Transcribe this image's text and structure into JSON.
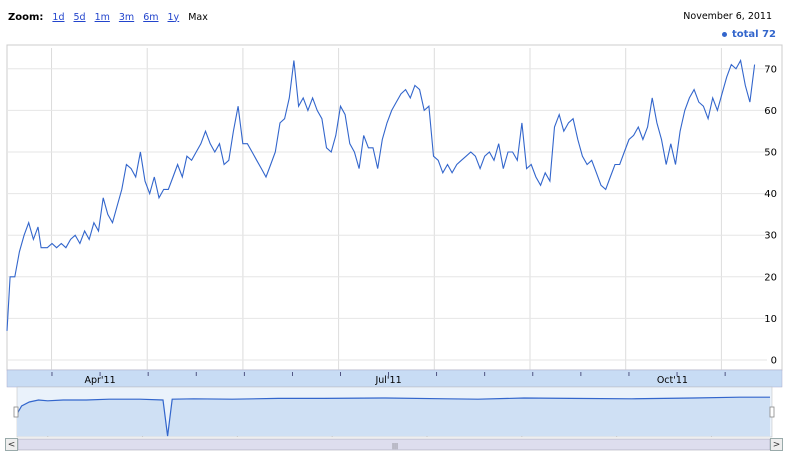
{
  "zoom": {
    "label": "Zoom:",
    "options": [
      "1d",
      "5d",
      "1m",
      "3m",
      "6m",
      "1y"
    ],
    "max": "Max"
  },
  "date": "November 6, 2011",
  "legend": {
    "label": "total 72",
    "color": "#3366cc"
  },
  "navigator": {
    "months": [
      "Apr'11",
      "Jul'11",
      "Oct'11"
    ]
  },
  "scrollbar": {
    "left_label": "<",
    "right_label": ">",
    "thumb_label": "|||"
  },
  "chart_data": {
    "type": "line",
    "series": [
      {
        "name": "total",
        "color": "#3366cc",
        "points": [
          [
            0,
            7
          ],
          [
            2,
            20
          ],
          [
            5,
            20
          ],
          [
            8,
            26
          ],
          [
            11,
            30
          ],
          [
            14,
            33
          ],
          [
            17,
            29
          ],
          [
            20,
            32
          ],
          [
            22,
            27
          ],
          [
            26,
            27
          ],
          [
            29,
            28
          ],
          [
            32,
            27
          ],
          [
            35,
            28
          ],
          [
            38,
            27
          ],
          [
            41,
            29
          ],
          [
            44,
            30
          ],
          [
            47,
            28
          ],
          [
            50,
            31
          ],
          [
            53,
            29
          ],
          [
            56,
            33
          ],
          [
            59,
            31
          ],
          [
            62,
            39
          ],
          [
            65,
            35
          ],
          [
            68,
            33
          ],
          [
            71,
            37
          ],
          [
            74,
            41
          ],
          [
            77,
            47
          ],
          [
            80,
            46
          ],
          [
            83,
            44
          ],
          [
            86,
            50
          ],
          [
            89,
            43
          ],
          [
            92,
            40
          ],
          [
            95,
            44
          ],
          [
            98,
            39
          ],
          [
            101,
            41
          ],
          [
            104,
            41
          ],
          [
            107,
            44
          ],
          [
            110,
            47
          ],
          [
            113,
            44
          ],
          [
            116,
            49
          ],
          [
            119,
            48
          ],
          [
            122,
            50
          ],
          [
            125,
            52
          ],
          [
            128,
            55
          ],
          [
            131,
            52
          ],
          [
            134,
            50
          ],
          [
            137,
            52
          ],
          [
            140,
            47
          ],
          [
            143,
            48
          ],
          [
            146,
            55
          ],
          [
            149,
            61
          ],
          [
            152,
            52
          ],
          [
            155,
            52
          ],
          [
            158,
            50
          ],
          [
            161,
            48
          ],
          [
            164,
            46
          ],
          [
            167,
            44
          ],
          [
            170,
            47
          ],
          [
            173,
            50
          ],
          [
            176,
            57
          ],
          [
            179,
            58
          ],
          [
            182,
            63
          ],
          [
            185,
            72
          ],
          [
            188,
            61
          ],
          [
            191,
            63
          ],
          [
            194,
            60
          ],
          [
            197,
            63
          ],
          [
            200,
            60
          ],
          [
            203,
            58
          ],
          [
            206,
            51
          ],
          [
            209,
            50
          ],
          [
            212,
            54
          ],
          [
            215,
            61
          ],
          [
            218,
            59
          ],
          [
            221,
            52
          ],
          [
            224,
            50
          ],
          [
            227,
            46
          ],
          [
            230,
            54
          ],
          [
            233,
            51
          ],
          [
            236,
            51
          ],
          [
            239,
            46
          ],
          [
            242,
            53
          ],
          [
            245,
            57
          ],
          [
            248,
            60
          ],
          [
            251,
            62
          ],
          [
            254,
            64
          ],
          [
            257,
            65
          ],
          [
            260,
            63
          ],
          [
            263,
            66
          ],
          [
            266,
            65
          ],
          [
            269,
            60
          ],
          [
            272,
            61
          ],
          [
            275,
            49
          ],
          [
            278,
            48
          ],
          [
            281,
            45
          ],
          [
            284,
            47
          ],
          [
            287,
            45
          ],
          [
            290,
            47
          ],
          [
            293,
            48
          ],
          [
            296,
            49
          ],
          [
            299,
            50
          ],
          [
            302,
            49
          ],
          [
            305,
            46
          ],
          [
            308,
            49
          ],
          [
            311,
            50
          ],
          [
            314,
            48
          ],
          [
            317,
            52
          ],
          [
            320,
            46
          ],
          [
            323,
            50
          ],
          [
            326,
            50
          ],
          [
            329,
            48
          ],
          [
            332,
            57
          ],
          [
            335,
            46
          ],
          [
            338,
            47
          ],
          [
            341,
            44
          ],
          [
            344,
            42
          ],
          [
            347,
            45
          ],
          [
            350,
            43
          ],
          [
            353,
            56
          ],
          [
            356,
            59
          ],
          [
            359,
            55
          ],
          [
            362,
            57
          ],
          [
            365,
            58
          ],
          [
            368,
            53
          ],
          [
            371,
            49
          ],
          [
            374,
            47
          ],
          [
            377,
            48
          ],
          [
            380,
            45
          ],
          [
            383,
            42
          ],
          [
            386,
            41
          ],
          [
            389,
            44
          ],
          [
            392,
            47
          ],
          [
            395,
            47
          ],
          [
            398,
            50
          ],
          [
            401,
            53
          ],
          [
            404,
            54
          ],
          [
            407,
            56
          ],
          [
            410,
            53
          ],
          [
            413,
            56
          ],
          [
            416,
            63
          ],
          [
            419,
            57
          ],
          [
            422,
            53
          ],
          [
            425,
            47
          ],
          [
            428,
            52
          ],
          [
            431,
            47
          ],
          [
            434,
            55
          ],
          [
            437,
            60
          ],
          [
            440,
            63
          ],
          [
            443,
            65
          ],
          [
            446,
            62
          ],
          [
            449,
            61
          ],
          [
            452,
            58
          ],
          [
            455,
            63
          ],
          [
            458,
            60
          ],
          [
            461,
            64
          ],
          [
            464,
            68
          ],
          [
            467,
            71
          ],
          [
            470,
            70
          ],
          [
            473,
            72
          ],
          [
            476,
            66
          ],
          [
            479,
            62
          ],
          [
            482,
            71
          ]
        ]
      }
    ],
    "xlim": [
      0,
      490
    ],
    "ylim": [
      0,
      75
    ],
    "yticks": [
      0,
      10,
      20,
      30,
      40,
      50,
      60,
      70
    ],
    "xticks": [
      {
        "x": 60,
        "label": "Apr'11"
      },
      {
        "x": 246,
        "label": "Jul'11"
      },
      {
        "x": 429,
        "label": "Oct'11"
      }
    ],
    "grid": true,
    "navigator_profile": [
      [
        0,
        0.55
      ],
      [
        3,
        0.75
      ],
      [
        8,
        0.85
      ],
      [
        14,
        0.9
      ],
      [
        20,
        0.88
      ],
      [
        30,
        0.9
      ],
      [
        45,
        0.9
      ],
      [
        60,
        0.92
      ],
      [
        80,
        0.92
      ],
      [
        95,
        0.9
      ],
      [
        98,
        0.0
      ],
      [
        101,
        0.92
      ],
      [
        115,
        0.93
      ],
      [
        140,
        0.92
      ],
      [
        170,
        0.94
      ],
      [
        200,
        0.94
      ],
      [
        240,
        0.95
      ],
      [
        280,
        0.93
      ],
      [
        300,
        0.92
      ],
      [
        330,
        0.95
      ],
      [
        360,
        0.94
      ],
      [
        400,
        0.93
      ],
      [
        440,
        0.95
      ],
      [
        470,
        0.97
      ],
      [
        490,
        0.97
      ]
    ]
  }
}
